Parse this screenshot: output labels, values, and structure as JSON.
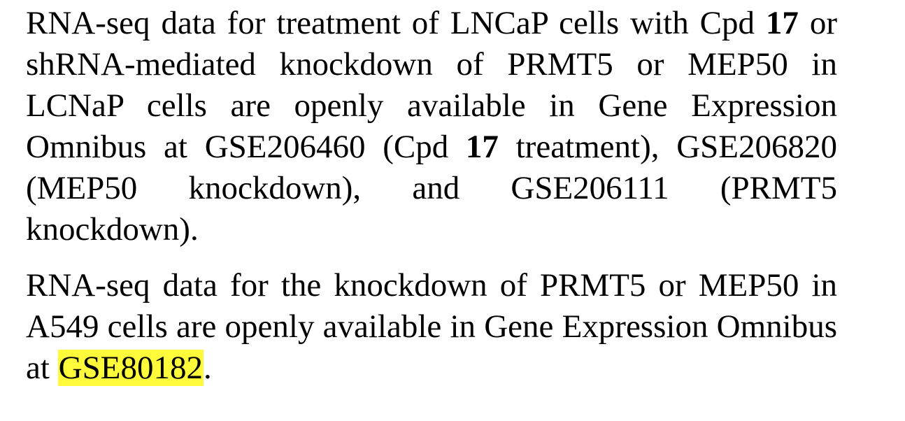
{
  "paragraph1": {
    "part1": "RNA-seq data for treatment of LNCaP cells with Cpd ",
    "cpd_bold_1": "17",
    "part2": " or shRNA-mediated knockdown of PRMT5 or MEP50 in LCNaP cells are openly available in Gene Expression Omnibus at GSE206460 (Cpd ",
    "cpd_bold_2": "17",
    "part3": " treat­ment), GSE206820 (MEP50 knockdown), and GSE206111 (PRMT5 knockdown)."
  },
  "paragraph2": {
    "part1": "RNA-seq data for the knockdown of PRMT5 or MEP50 in A549 cells are openly available in Gene Expression Omnibus at ",
    "highlighted_accession": "GSE80182",
    "part2": "."
  },
  "colors": {
    "highlight": "#fffb3a",
    "text": "#000000"
  }
}
